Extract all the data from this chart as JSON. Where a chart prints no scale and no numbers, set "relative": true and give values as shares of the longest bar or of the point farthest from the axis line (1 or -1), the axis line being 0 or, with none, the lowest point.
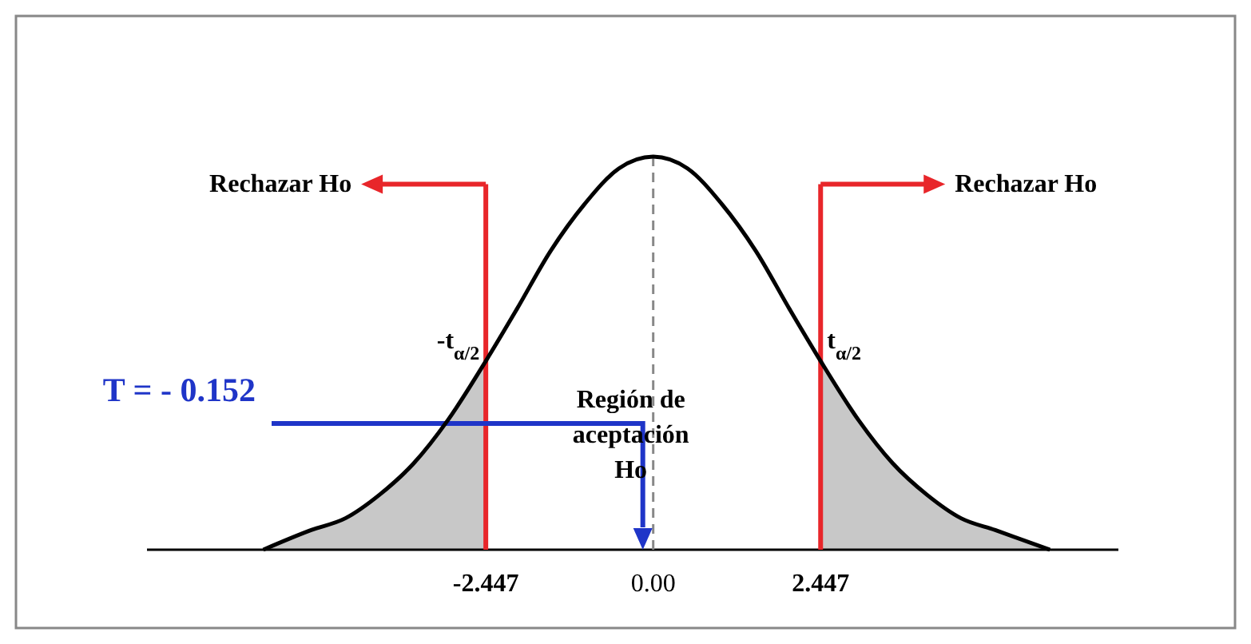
{
  "chart_data": {
    "type": "line",
    "relative": true,
    "x": [
      -5.7,
      -5,
      -4.5,
      -4,
      -3.5,
      -3,
      -2.447,
      -2,
      -1.5,
      -1,
      -0.5,
      0,
      0.5,
      1,
      1.5,
      2,
      2.447,
      3,
      3.5,
      4,
      4.5,
      5,
      5.8
    ],
    "series": [
      {
        "color": "#000000",
        "values": [
          0,
          0.05,
          0.08,
          0.14,
          0.22,
          0.33,
          0.48,
          0.61,
          0.76,
          0.88,
          0.97,
          1,
          0.97,
          0.88,
          0.76,
          0.61,
          0.48,
          0.33,
          0.22,
          0.14,
          0.08,
          0.05,
          0
        ]
      }
    ],
    "xlim": [
      -7.4,
      6.8
    ],
    "xticks": [
      -2.447,
      {
        "value": 0,
        "label": "0.00"
      },
      2.447
    ],
    "bands": [
      {
        "axis": "x",
        "from": -5.7,
        "to": -2.447,
        "color": "#c8c8c8"
      },
      {
        "axis": "x",
        "from": 2.447,
        "to": 5.8,
        "color": "#c8c8c8"
      }
    ],
    "ref_lines": [
      {
        "axis": "x",
        "value": -2.447,
        "label": "Rechazar Ho",
        "color": "#e8262a"
      },
      {
        "axis": "x",
        "value": 2.447,
        "label": "Rechazar Ho",
        "color": "#e8262a"
      },
      {
        "axis": "x",
        "value": 0,
        "color": "#888888",
        "line_style": "dashed"
      },
      {
        "axis": "x",
        "value": -0.152,
        "label": "T = - 0.152",
        "color": "#1f35c8"
      }
    ],
    "annotations": [
      {
        "text": "-t$_{α/2}$",
        "x": -2.447,
        "y": 0.48
      },
      {
        "text": "t$_{α/2}$",
        "x": 2.447,
        "y": 0.48
      },
      "Región de aceptación Ho"
    ],
    "marker": "none",
    "line_style": "solid"
  }
}
